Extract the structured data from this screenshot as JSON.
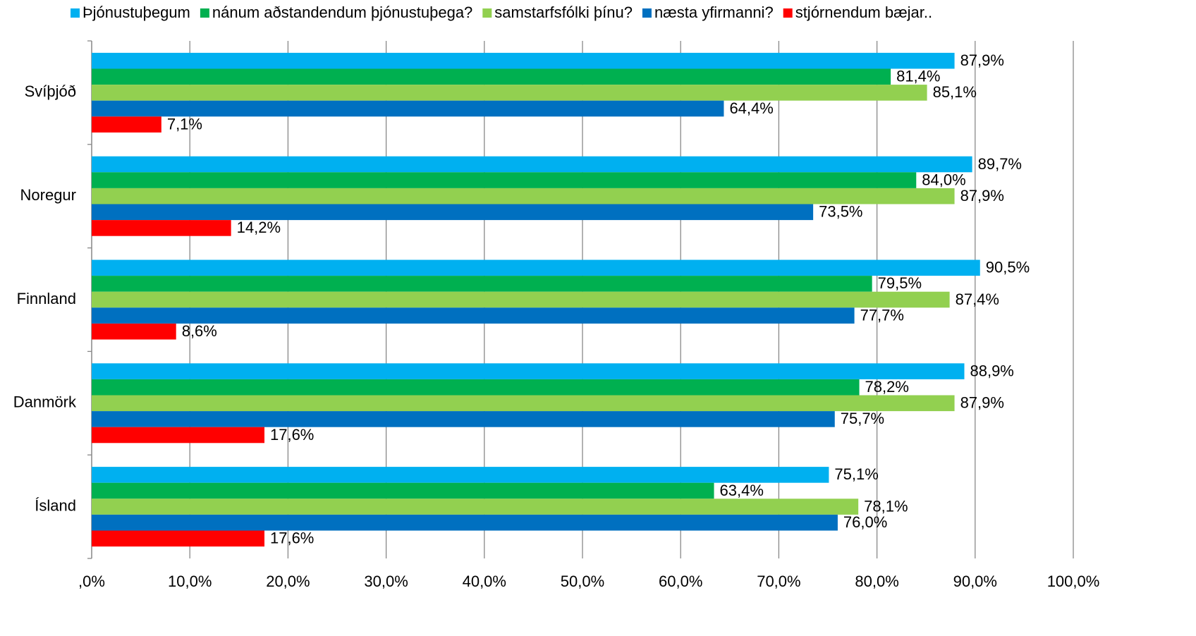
{
  "chart_data": {
    "type": "hbar",
    "categories": [
      "Svíþjóð",
      "Noregur",
      "Finnland",
      "Danmörk",
      "Ísland"
    ],
    "series": [
      {
        "name": "Þjónustuþegum",
        "color": "#00b0f0",
        "values": [
          87.9,
          89.7,
          90.5,
          88.9,
          75.1
        ],
        "value_labels": [
          "87,9%",
          "89,7%",
          "90,5%",
          "88,9%",
          "75,1%"
        ]
      },
      {
        "name": "nánum aðstandendum þjónustuþega?",
        "color": "#00b050",
        "values": [
          81.4,
          84.0,
          79.5,
          78.2,
          63.4
        ],
        "value_labels": [
          "81,4%",
          "84,0%",
          "79,5%",
          "78,2%",
          "63,4%"
        ]
      },
      {
        "name": "samstarfsfólki þínu?",
        "color": "#92d050",
        "values": [
          85.1,
          87.9,
          87.4,
          87.9,
          78.1
        ],
        "value_labels": [
          "85,1%",
          "87,9%",
          "87,4%",
          "87,9%",
          "78,1%"
        ]
      },
      {
        "name": "næsta yfirmanni?",
        "color": "#0070c0",
        "values": [
          64.4,
          73.5,
          77.7,
          75.7,
          76.0
        ],
        "value_labels": [
          "64,4%",
          "73,5%",
          "77,7%",
          "75,7%",
          "76,0%"
        ]
      },
      {
        "name": "stjórnendum bæjar..",
        "color": "#ff0000",
        "values": [
          7.1,
          14.2,
          8.6,
          17.6,
          17.6
        ],
        "value_labels": [
          "7,1%",
          "14,2%",
          "8,6%",
          "17,6%",
          "17,6%"
        ]
      }
    ],
    "xlim": [
      0,
      100
    ],
    "xticks": [
      {
        "value": 0,
        "label": ",0%"
      },
      {
        "value": 10,
        "label": "10,0%"
      },
      {
        "value": 20,
        "label": "20,0%"
      },
      {
        "value": 30,
        "label": "30,0%"
      },
      {
        "value": 40,
        "label": "40,0%"
      },
      {
        "value": 50,
        "label": "50,0%"
      },
      {
        "value": 60,
        "label": "60,0%"
      },
      {
        "value": 70,
        "label": "70,0%"
      },
      {
        "value": 80,
        "label": "80,0%"
      },
      {
        "value": 90,
        "label": "90,0%"
      },
      {
        "value": 100,
        "label": "100,0%"
      }
    ],
    "grid": true,
    "legend": "top"
  }
}
